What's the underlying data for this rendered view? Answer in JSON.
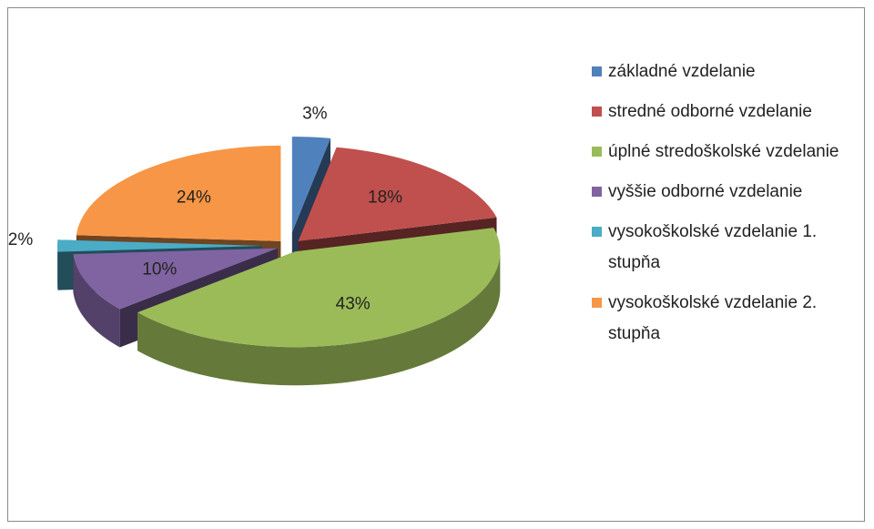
{
  "chart_data": {
    "type": "pie",
    "categories": [
      "základné vzdelanie",
      "stredné odborné vzdelanie",
      "úplné stredoškolské vzdelanie",
      "vyššie odborné vzdelanie",
      "vysokoškolské vzdelanie 1. stupňa",
      "vysokoškolské vzdelanie 2. stupňa"
    ],
    "values": [
      3,
      18,
      43,
      10,
      2,
      24
    ],
    "value_labels": [
      "3%",
      "18%",
      "43%",
      "10%",
      "2%",
      "24%"
    ],
    "colors": [
      "#4f81bd",
      "#c0504d",
      "#9bbb59",
      "#8064a2",
      "#4bacc6",
      "#f79646"
    ],
    "legend": "right"
  }
}
